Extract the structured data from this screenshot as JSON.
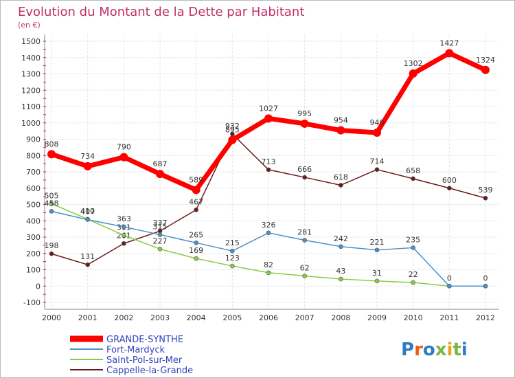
{
  "chart_data": {
    "type": "line",
    "title": "Evolution du Montant de la Dette par Habitant",
    "subtitle": "(en €)",
    "x": [
      "2000",
      "2001",
      "2002",
      "2003",
      "2004",
      "2005",
      "2006",
      "2007",
      "2008",
      "2009",
      "2010",
      "2011",
      "2012"
    ],
    "y_ticks": [
      "1500",
      "1400",
      "1300",
      "1200",
      "1100",
      "1000",
      "900",
      "800",
      "700",
      "600",
      "500",
      "400",
      "300",
      "200",
      "100",
      "0",
      "-100"
    ],
    "ylim": [
      -100,
      1500
    ],
    "grid": true,
    "legend_position": "bottom-left",
    "series": [
      {
        "name": "GRANDE-SYNTHE",
        "color": "#ff0000",
        "values": [
          808,
          734,
          790,
          687,
          589,
          895,
          1027,
          995,
          954,
          940,
          1302,
          1427,
          1324
        ],
        "labels": [
          "808",
          "734",
          "790",
          "687",
          "589",
          "895",
          "1027",
          "995",
          "954",
          "940",
          "1302",
          "1427",
          "1324"
        ]
      },
      {
        "name": "Fort-Mardyck",
        "color": "#4a90c8",
        "values": [
          458,
          407,
          363,
          315,
          265,
          215,
          326,
          281,
          242,
          221,
          235,
          0,
          0
        ],
        "labels": [
          "458",
          "407",
          "363",
          "315",
          "265",
          "215",
          "326",
          "281",
          "242",
          "221",
          "235",
          "0",
          "0"
        ]
      },
      {
        "name": "Saint-Pol-sur-Mer",
        "color": "#88cc44",
        "values": [
          505,
          410,
          311,
          227,
          169,
          123,
          82,
          62,
          43,
          31,
          22,
          0,
          0
        ],
        "labels": [
          "505",
          "410",
          "311",
          "227",
          "169",
          "123",
          "82",
          "62",
          "43",
          "31",
          "22",
          "",
          ""
        ]
      },
      {
        "name": "Cappelle-la-Grande",
        "color": "#6b1a1a",
        "values": [
          198,
          131,
          261,
          337,
          467,
          932,
          713,
          666,
          618,
          714,
          658,
          600,
          539
        ],
        "labels": [
          "198",
          "131",
          "261",
          "337",
          "467",
          "932",
          "713",
          "666",
          "618",
          "714",
          "658",
          "600",
          "539"
        ]
      }
    ]
  },
  "logo": {
    "text": "Proxiti",
    "letters": [
      "P",
      "r",
      "o",
      "x",
      "i",
      "t",
      "i"
    ],
    "colors": [
      "#2e7bc4",
      "#e85d1a",
      "#2e7bc4",
      "#7ab648",
      "#f0a020",
      "#7ab648",
      "#2e7bc4"
    ]
  }
}
